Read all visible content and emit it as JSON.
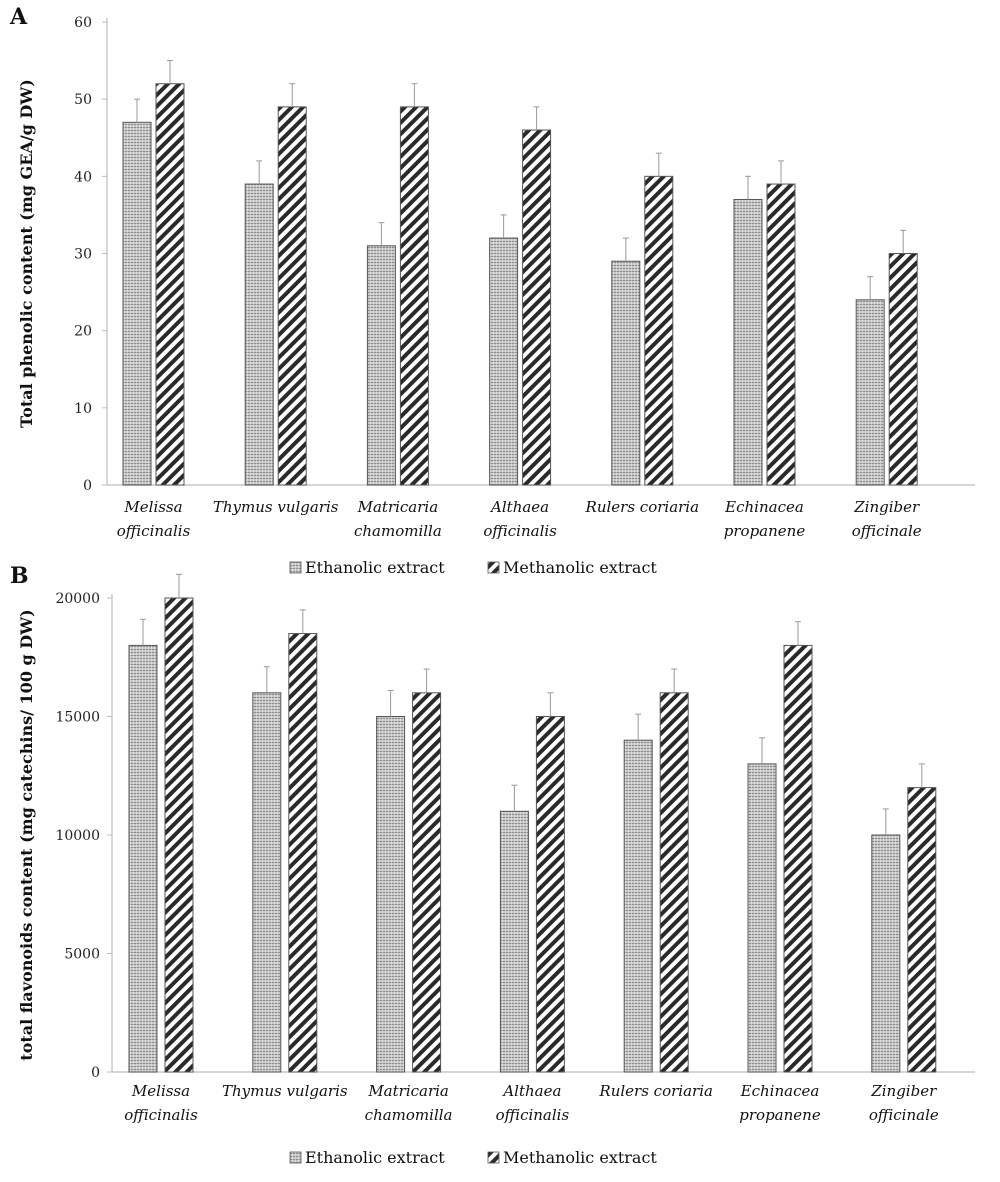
{
  "chart_data": [
    {
      "panel": "A",
      "type": "bar",
      "ylabel": "Total phenolic content (mg GEA/g DW)",
      "ylim": [
        0,
        60
      ],
      "yticks": [
        0,
        10,
        20,
        30,
        40,
        50,
        60
      ],
      "grid": false,
      "legend_position": "bottom",
      "categories": [
        [
          "Melissa",
          "officinalis"
        ],
        [
          "Thymus vulgaris"
        ],
        [
          "Matricaria",
          "chamomilla"
        ],
        [
          "Althaea",
          "officinalis"
        ],
        [
          "Rulers coriaria"
        ],
        [
          "Echinacea",
          "propanene"
        ],
        [
          "Zingiber",
          "officinale"
        ]
      ],
      "series": [
        {
          "name": "Ethanolic extract",
          "values": [
            47,
            39,
            31,
            32,
            29,
            37,
            24
          ],
          "error": [
            3,
            3,
            3,
            3,
            3,
            3,
            3
          ]
        },
        {
          "name": "Methanolic extract",
          "values": [
            52,
            49,
            49,
            46,
            40,
            39,
            30
          ],
          "error": [
            3,
            3,
            3,
            3,
            3,
            3,
            3
          ]
        }
      ]
    },
    {
      "panel": "B",
      "type": "bar",
      "ylabel": "total flavonoids content (mg catechins/ 100 g DW)",
      "ylim": [
        0,
        20000
      ],
      "yticks": [
        0,
        5000,
        10000,
        15000,
        20000
      ],
      "grid": false,
      "legend_position": "bottom",
      "categories": [
        [
          "Melissa",
          "officinalis"
        ],
        [
          "Thymus vulgaris"
        ],
        [
          "Matricaria",
          "chamomilla"
        ],
        [
          "Althaea",
          "officinalis"
        ],
        [
          "Rulers coriaria"
        ],
        [
          "Echinacea",
          "propanene"
        ],
        [
          "Zingiber",
          "officinale"
        ]
      ],
      "series": [
        {
          "name": "Ethanolic extract",
          "values": [
            18000,
            16000,
            15000,
            11000,
            14000,
            13000,
            10000
          ],
          "error": [
            1100,
            1100,
            1100,
            1100,
            1100,
            1100,
            1100
          ]
        },
        {
          "name": "Methanolic extract",
          "values": [
            20000,
            18500,
            16000,
            15000,
            16000,
            18000,
            12000
          ],
          "error": [
            1000,
            1000,
            1000,
            1000,
            1000,
            1000,
            1000
          ]
        }
      ]
    }
  ]
}
